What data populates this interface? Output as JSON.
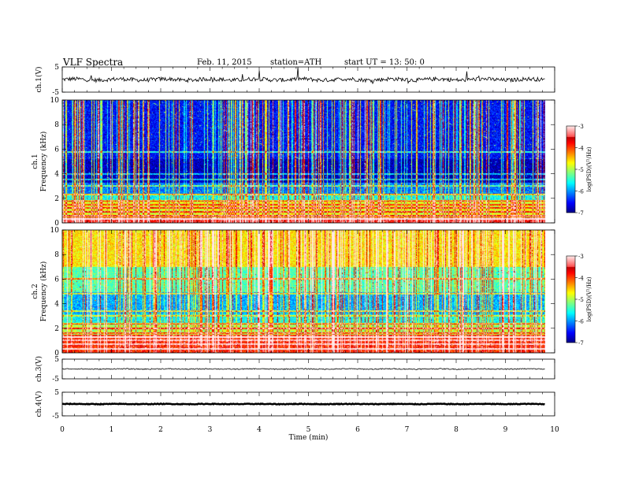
{
  "header": {
    "title": "VLF  Spectra",
    "date": "Feb. 11, 2015",
    "station": "station=ATH",
    "start": "start  UT  =   13: 50: 0"
  },
  "chart_data": {
    "type": "heatmap",
    "x_axis": {
      "label": "Time  (min)",
      "range": [
        0,
        10
      ],
      "ticks": [
        "0",
        "1",
        "2",
        "3",
        "4",
        "5",
        "6",
        "7",
        "8",
        "9",
        "10"
      ],
      "data_end": 9.8
    },
    "panels": [
      {
        "id": "ch1-wave",
        "kind": "waveform",
        "ylabel": "ch.1(V)",
        "yrange": [
          -5,
          5
        ],
        "ticks": [
          "5",
          "-5"
        ],
        "baseline": 0,
        "amplitude": 0.8,
        "spikes": true
      },
      {
        "id": "ch1-spec",
        "kind": "spectrogram",
        "ylabel": "ch.1",
        "ylabel2": "Frequency  (kHz)",
        "yrange": [
          0,
          10
        ],
        "ticks": [
          "0",
          "2",
          "4",
          "6",
          "8",
          "10"
        ],
        "colorbar": {
          "label": "log(PSD)(V²/Hz)",
          "range": [
            -7,
            -3
          ],
          "ticks": [
            "-3",
            "-4",
            "-5",
            "-6",
            "-7"
          ]
        },
        "bands": [
          [
            0.0,
            0.5,
            -3.6
          ],
          [
            0.5,
            1.8,
            -4.8
          ],
          [
            1.8,
            2.4,
            -5.6
          ],
          [
            2.4,
            3.3,
            -6.1
          ],
          [
            3.3,
            5.2,
            -6.8
          ],
          [
            5.2,
            10,
            -6.5
          ]
        ],
        "lines_khz": [
          0.3,
          0.6,
          0.9,
          1.2,
          1.5,
          1.8,
          2.3,
          3.0,
          3.5,
          4.0,
          5.8
        ]
      },
      {
        "id": "ch2-spec",
        "kind": "spectrogram",
        "ylabel": "ch.2",
        "ylabel2": "Frequency  (kHz)",
        "yrange": [
          0,
          10
        ],
        "ticks": [
          "0",
          "2",
          "4",
          "6",
          "8",
          "10"
        ],
        "colorbar": {
          "label": "log(PSD)(V²/Hz)",
          "range": [
            -7,
            -3
          ],
          "ticks": [
            "-3",
            "-4",
            "-5",
            "-6",
            "-7"
          ]
        },
        "bands": [
          [
            0.0,
            1.5,
            -3.9
          ],
          [
            1.5,
            2.4,
            -5.0
          ],
          [
            2.4,
            3.2,
            -5.6
          ],
          [
            3.2,
            5.0,
            -5.9
          ],
          [
            5.0,
            7.0,
            -5.3
          ],
          [
            7.0,
            10,
            -4.6
          ]
        ],
        "lines_khz": [
          0.3,
          0.7,
          1.0,
          1.3,
          1.6,
          2.0,
          2.4,
          3.0,
          3.4,
          4.8,
          6.0
        ]
      },
      {
        "id": "ch3-wave",
        "kind": "waveform",
        "ylabel": "ch.3(V)",
        "yrange": [
          -5,
          5
        ],
        "ticks": [
          "5",
          "-5"
        ],
        "baseline": 0,
        "amplitude": 0.25,
        "spikes": false
      },
      {
        "id": "ch4-wave",
        "kind": "waveform",
        "ylabel": "ch.4(V)",
        "yrange": [
          -5,
          5
        ],
        "ticks": [
          "5",
          "-5"
        ],
        "baseline": 0,
        "amplitude": 0.15,
        "spikes": false
      }
    ]
  }
}
